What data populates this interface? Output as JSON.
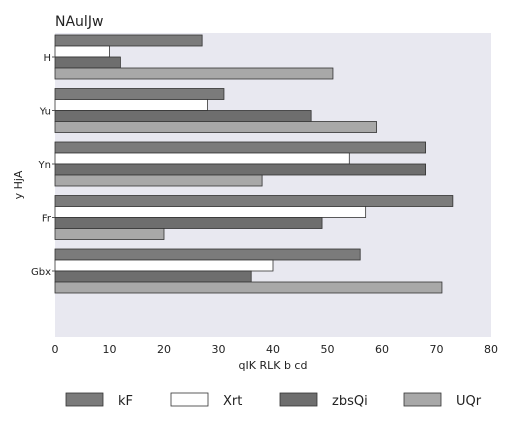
{
  "chart_data": {
    "type": "bar",
    "orientation": "horizontal",
    "title": "NAulJw",
    "xlabel": "qIK RLK b  cd",
    "ylabel": "y HjA",
    "xlim": [
      0,
      80
    ],
    "xticks": [
      0,
      10,
      20,
      30,
      40,
      50,
      60,
      70,
      80
    ],
    "grid": false,
    "legend_position": "bottom",
    "categories": [
      "H",
      "Yu",
      "Yn",
      "Fr",
      "Gbx"
    ],
    "series": [
      {
        "name": "kF",
        "color": "#7b7b7b",
        "values": [
          27,
          31,
          68,
          73,
          56
        ]
      },
      {
        "name": "Xrt",
        "color": "#ffffff",
        "values": [
          10,
          28,
          54,
          57,
          40
        ]
      },
      {
        "name": "zbsQi",
        "color": "#6e6e6e",
        "values": [
          12,
          47,
          68,
          49,
          36
        ]
      },
      {
        "name": "UQr",
        "color": "#a8a8a8",
        "values": [
          51,
          59,
          38,
          20,
          71
        ]
      }
    ],
    "plot_background": "#e8e8f0"
  }
}
